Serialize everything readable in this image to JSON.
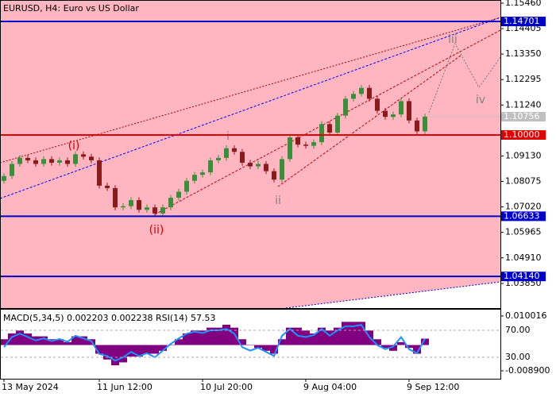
{
  "chart_data": [
    {
      "type": "candlestick",
      "title": "EURUSD, H4:  Euro vs US Dollar",
      "categories": [
        "13 May 2024",
        null,
        null,
        null,
        null,
        null,
        null,
        null,
        null,
        null,
        null,
        null,
        "11 Jun 12:00",
        null,
        null,
        null,
        null,
        null,
        null,
        null,
        null,
        null,
        null,
        null,
        null,
        "10 Jul 20:00",
        null,
        null,
        null,
        null,
        null,
        null,
        null,
        null,
        null,
        null,
        null,
        null,
        "9 Aug 04:00",
        null,
        null,
        null,
        null,
        null,
        null,
        null,
        null,
        null,
        null,
        null,
        null,
        "9 Sep 12:00",
        null,
        null
      ],
      "open": [
        1.081,
        1.083,
        1.088,
        1.0905,
        1.0895,
        1.088,
        1.09,
        1.0885,
        1.0895,
        1.088,
        1.092,
        1.091,
        1.0895,
        1.079,
        1.078,
        1.07,
        1.0705,
        1.073,
        1.069,
        1.07,
        1.0675,
        1.07,
        1.074,
        1.0765,
        1.081,
        1.0835,
        1.0845,
        1.0895,
        1.0905,
        1.0945,
        1.093,
        1.0885,
        1.087,
        1.088,
        1.085,
        1.0815,
        1.09,
        1.099,
        1.096,
        1.0955,
        1.097,
        1.1045,
        1.101,
        1.108,
        1.115,
        1.117,
        1.1195,
        1.115,
        1.11,
        1.1075,
        1.1085,
        1.114,
        1.106,
        1.1015
      ],
      "high": [
        1.0842,
        1.0892,
        1.0917,
        1.0917,
        1.0907,
        1.0912,
        1.0912,
        1.0907,
        1.0907,
        1.0932,
        1.0932,
        1.0922,
        1.0907,
        1.0802,
        1.0792,
        1.0717,
        1.0742,
        1.0742,
        1.0712,
        1.0712,
        1.0712,
        1.0752,
        1.0777,
        1.0822,
        1.0847,
        1.0857,
        1.0907,
        1.0917,
        1.0957,
        1.0957,
        1.0942,
        1.0897,
        1.0892,
        1.0892,
        1.0862,
        1.0912,
        1.1002,
        1.1002,
        1.0972,
        1.0982,
        1.1057,
        1.1057,
        1.1092,
        1.1162,
        1.1182,
        1.1207,
        1.1207,
        1.1162,
        1.1112,
        1.1097,
        1.1152,
        1.1152,
        1.1072,
        1.1088
      ],
      "low": [
        1.0798,
        1.0818,
        1.0868,
        1.0883,
        1.0868,
        1.0868,
        1.0873,
        1.0873,
        1.0868,
        1.0868,
        1.0898,
        1.0883,
        1.0778,
        1.0768,
        1.0688,
        1.0688,
        1.0693,
        1.0678,
        1.0678,
        1.0663,
        1.0663,
        1.0688,
        1.0728,
        1.0753,
        1.0798,
        1.0823,
        1.0833,
        1.0883,
        1.0893,
        1.0918,
        1.0873,
        1.0858,
        1.0858,
        1.0838,
        1.0803,
        1.0803,
        1.0888,
        1.0948,
        1.0943,
        1.0943,
        1.0958,
        1.0998,
        1.0998,
        1.1068,
        1.1138,
        1.1158,
        1.1138,
        1.1088,
        1.1063,
        1.1063,
        1.1073,
        1.1048,
        1.1003,
        1.1003
      ],
      "close": [
        1.083,
        1.088,
        1.0905,
        1.0895,
        1.088,
        1.09,
        1.0885,
        1.0895,
        1.088,
        1.092,
        1.091,
        1.0895,
        1.079,
        1.078,
        1.07,
        1.0705,
        1.073,
        1.069,
        1.07,
        1.0675,
        1.07,
        1.074,
        1.0765,
        1.081,
        1.0835,
        1.0845,
        1.0895,
        1.0905,
        1.0945,
        1.093,
        1.0885,
        1.087,
        1.088,
        1.085,
        1.0815,
        1.09,
        1.099,
        1.096,
        1.0955,
        1.097,
        1.1045,
        1.101,
        1.108,
        1.115,
        1.117,
        1.1195,
        1.115,
        1.11,
        1.1075,
        1.1085,
        1.114,
        1.106,
        1.1015,
        1.1076
      ],
      "up_color": "#3a8f3a",
      "down_color": "#8b1a1a",
      "ylim": [
        1.0283,
        1.1559
      ],
      "yticks": [
        {
          "value": 1.1546,
          "label": "1.15460"
        },
        1.14405,
        {
          "value": 1.1335,
          "label": "1.13350"
        },
        1.12295,
        {
          "value": 1.1124,
          "label": "1.11240"
        },
        {
          "value": 1.0913,
          "label": "1.09130"
        },
        1.08075,
        {
          "value": 1.0702,
          "label": "1.07020"
        },
        1.05965,
        {
          "value": 1.0491,
          "label": "1.04910"
        },
        {
          "value": 1.0385,
          "label": "1.03850"
        }
      ],
      "levels": [
        {
          "value": 1.14701,
          "color": "#0000cd"
        },
        {
          "value": 1.1,
          "label": "1.10000",
          "color": "#e00000"
        },
        {
          "value": 1.06633,
          "color": "#0000cd"
        },
        {
          "value": 1.0414,
          "label": "1.04140",
          "color": "#0000cd"
        }
      ],
      "current_price": {
        "value": 1.10756,
        "color": "#c0c0c0"
      },
      "annotations": [
        "(i)",
        "(ii)",
        "i",
        "ii",
        "iii",
        "iv"
      ]
    },
    {
      "type": "macd_rsi",
      "title": "MACD(5,34,5) 0.002203 0.002238 RSI(14) 57.53",
      "macd": [
        0.002,
        0.004,
        0.005,
        0.004,
        0.003,
        0.003,
        0.002,
        0.002,
        0.001,
        0.003,
        0.003,
        0.002,
        -0.003,
        -0.005,
        -0.007,
        -0.006,
        -0.004,
        -0.004,
        -0.003,
        -0.003,
        -0.002,
        0.0,
        0.002,
        0.004,
        0.005,
        0.005,
        0.006,
        0.006,
        0.007,
        0.006,
        0.002,
        0.0,
        -0.001,
        -0.002,
        -0.003,
        0.002,
        0.006,
        0.006,
        0.005,
        0.004,
        0.006,
        0.005,
        0.006,
        0.008,
        0.008,
        0.008,
        0.005,
        0.002,
        -0.001,
        -0.002,
        0.001,
        -0.001,
        -0.003,
        0.002203
      ],
      "macd_color": "#800080",
      "rsi": [
        45,
        60,
        65,
        60,
        55,
        58,
        54,
        57,
        53,
        62,
        58,
        54,
        35,
        32,
        25,
        30,
        38,
        32,
        36,
        30,
        40,
        50,
        58,
        65,
        68,
        66,
        70,
        70,
        72,
        65,
        45,
        40,
        44,
        38,
        32,
        62,
        72,
        62,
        60,
        63,
        72,
        62,
        70,
        76,
        76,
        78,
        60,
        48,
        42,
        46,
        60,
        42,
        36,
        57.53
      ],
      "rsi_color": "#1e90ff",
      "ylim": [
        -0.01164,
        0.01248
      ],
      "yticks": [
        0.010016,
        {
          "value": -0.0089,
          "label": "-0.008900"
        }
      ],
      "y2lim": [
        -1.8,
        101.8
      ],
      "y2ticks": [
        {
          "value": 70,
          "label": "70.00"
        },
        {
          "value": 30,
          "label": "30.00"
        }
      ]
    }
  ]
}
